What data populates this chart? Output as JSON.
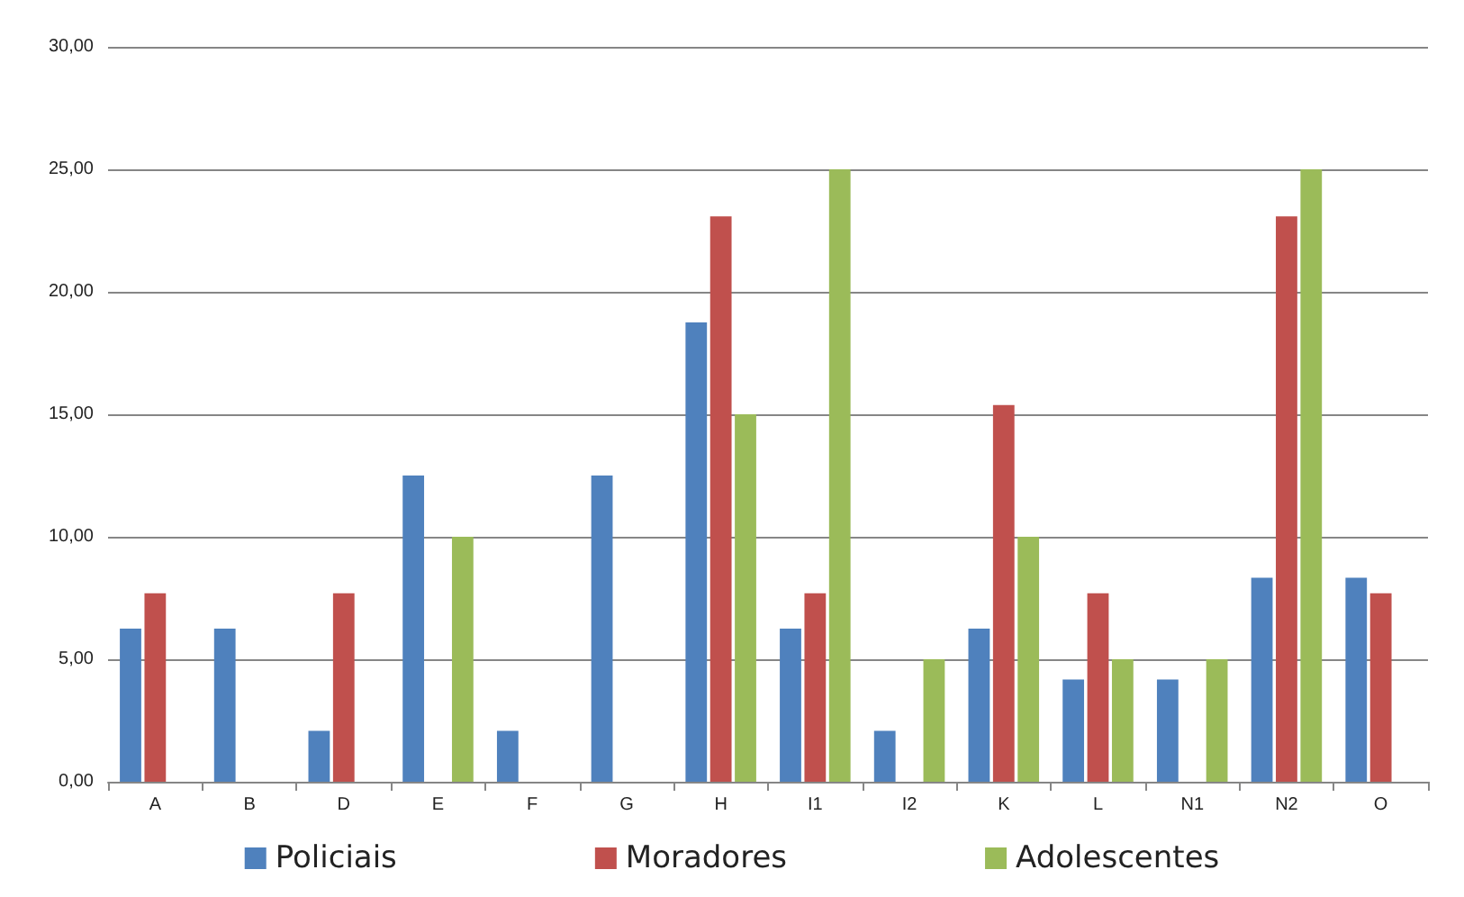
{
  "chart_data": {
    "type": "bar",
    "categories": [
      "A",
      "B",
      "D",
      "E",
      "F",
      "G",
      "H",
      "I1",
      "I2",
      "K",
      "L",
      "N1",
      "N2",
      "O"
    ],
    "series": [
      {
        "name": "Policiais",
        "color": "#4f81bd",
        "values": [
          6.25,
          6.25,
          2.08,
          12.5,
          2.08,
          12.5,
          18.75,
          6.25,
          2.08,
          6.25,
          4.17,
          4.17,
          8.33,
          8.33
        ]
      },
      {
        "name": "Moradores",
        "color": "#c0504d",
        "values": [
          7.69,
          0,
          7.69,
          0,
          0,
          0,
          23.08,
          7.69,
          0,
          15.38,
          7.69,
          0,
          23.08,
          7.69
        ]
      },
      {
        "name": "Adolescentes",
        "color": "#9bbb59",
        "values": [
          0,
          0,
          0,
          10,
          0,
          0,
          15,
          25,
          5,
          10,
          5,
          5,
          25,
          0
        ]
      }
    ],
    "ylim": [
      0,
      30
    ],
    "yticks": [
      {
        "value": 0,
        "label": "0,00"
      },
      {
        "value": 5,
        "label": "5,00"
      },
      {
        "value": 10,
        "label": "10,00"
      },
      {
        "value": 15,
        "label": "15,00"
      },
      {
        "value": 20,
        "label": "20,00"
      },
      {
        "value": 25,
        "label": "25,00"
      },
      {
        "value": 30,
        "label": "30,00"
      }
    ],
    "grid": "y",
    "legend": "bottom"
  }
}
